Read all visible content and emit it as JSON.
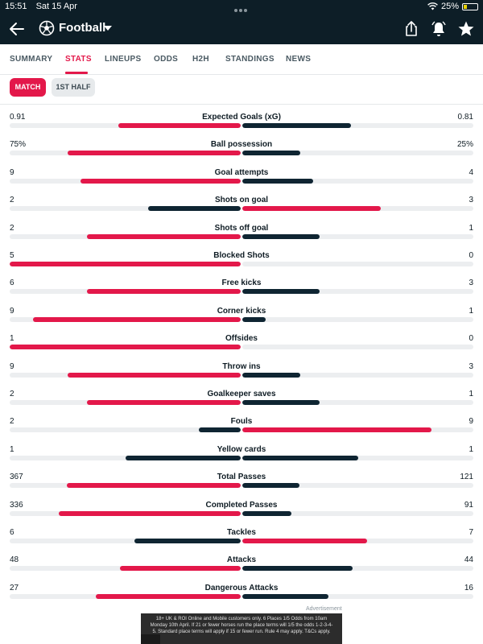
{
  "status_bar": {
    "time": "15:51",
    "date": "Sat 15 Apr",
    "battery": "25%"
  },
  "header": {
    "title": "Football"
  },
  "tabs": [
    {
      "label": "SUMMARY",
      "active": false
    },
    {
      "label": "STATS",
      "active": true
    },
    {
      "label": "LINEUPS",
      "active": false
    },
    {
      "label": "ODDS",
      "active": false
    },
    {
      "label": "H2H",
      "active": false
    },
    {
      "label": "STANDINGS",
      "active": false
    },
    {
      "label": "NEWS",
      "active": false
    }
  ],
  "subtabs": [
    {
      "label": "MATCH",
      "active": true
    },
    {
      "label": "1ST HALF",
      "active": false
    }
  ],
  "colors": {
    "home_winner": "#e3184a",
    "loser": "#0f2532",
    "away_winner": "#e3184a",
    "track": "#eceef0"
  },
  "stats": [
    {
      "label": "Expected Goals (xG)",
      "home": "0.91",
      "away": "0.81",
      "home_val": 0.91,
      "away_val": 0.81
    },
    {
      "label": "Ball possession",
      "home": "75%",
      "away": "25%",
      "home_val": 75,
      "away_val": 25
    },
    {
      "label": "Goal attempts",
      "home": "9",
      "away": "4",
      "home_val": 9,
      "away_val": 4
    },
    {
      "label": "Shots on goal",
      "home": "2",
      "away": "3",
      "home_val": 2,
      "away_val": 3
    },
    {
      "label": "Shots off goal",
      "home": "2",
      "away": "1",
      "home_val": 2,
      "away_val": 1
    },
    {
      "label": "Blocked Shots",
      "home": "5",
      "away": "0",
      "home_val": 5,
      "away_val": 0
    },
    {
      "label": "Free kicks",
      "home": "6",
      "away": "3",
      "home_val": 6,
      "away_val": 3
    },
    {
      "label": "Corner kicks",
      "home": "9",
      "away": "1",
      "home_val": 9,
      "away_val": 1
    },
    {
      "label": "Offsides",
      "home": "1",
      "away": "0",
      "home_val": 1,
      "away_val": 0
    },
    {
      "label": "Throw ins",
      "home": "9",
      "away": "3",
      "home_val": 9,
      "away_val": 3
    },
    {
      "label": "Goalkeeper saves",
      "home": "2",
      "away": "1",
      "home_val": 2,
      "away_val": 1
    },
    {
      "label": "Fouls",
      "home": "2",
      "away": "9",
      "home_val": 2,
      "away_val": 9
    },
    {
      "label": "Yellow cards",
      "home": "1",
      "away": "1",
      "home_val": 1,
      "away_val": 1
    },
    {
      "label": "Total Passes",
      "home": "367",
      "away": "121",
      "home_val": 367,
      "away_val": 121
    },
    {
      "label": "Completed Passes",
      "home": "336",
      "away": "91",
      "home_val": 336,
      "away_val": 91
    },
    {
      "label": "Tackles",
      "home": "6",
      "away": "7",
      "home_val": 6,
      "away_val": 7
    },
    {
      "label": "Attacks",
      "home": "48",
      "away": "44",
      "home_val": 48,
      "away_val": 44
    },
    {
      "label": "Dangerous Attacks",
      "home": "27",
      "away": "16",
      "home_val": 27,
      "away_val": 16
    }
  ],
  "ad": {
    "label": "Advertisement",
    "text": "18+ UK & ROI Online and Mobile customers only. 6 Places 1/5 Odds from 10am Monday 10th April. If 21 or fewer horses run the place terms will 1/5 the odds 1-2-3-4-5. Standard place terms will apply if 15 or fewer run. Rule 4 may apply. T&Cs apply."
  }
}
